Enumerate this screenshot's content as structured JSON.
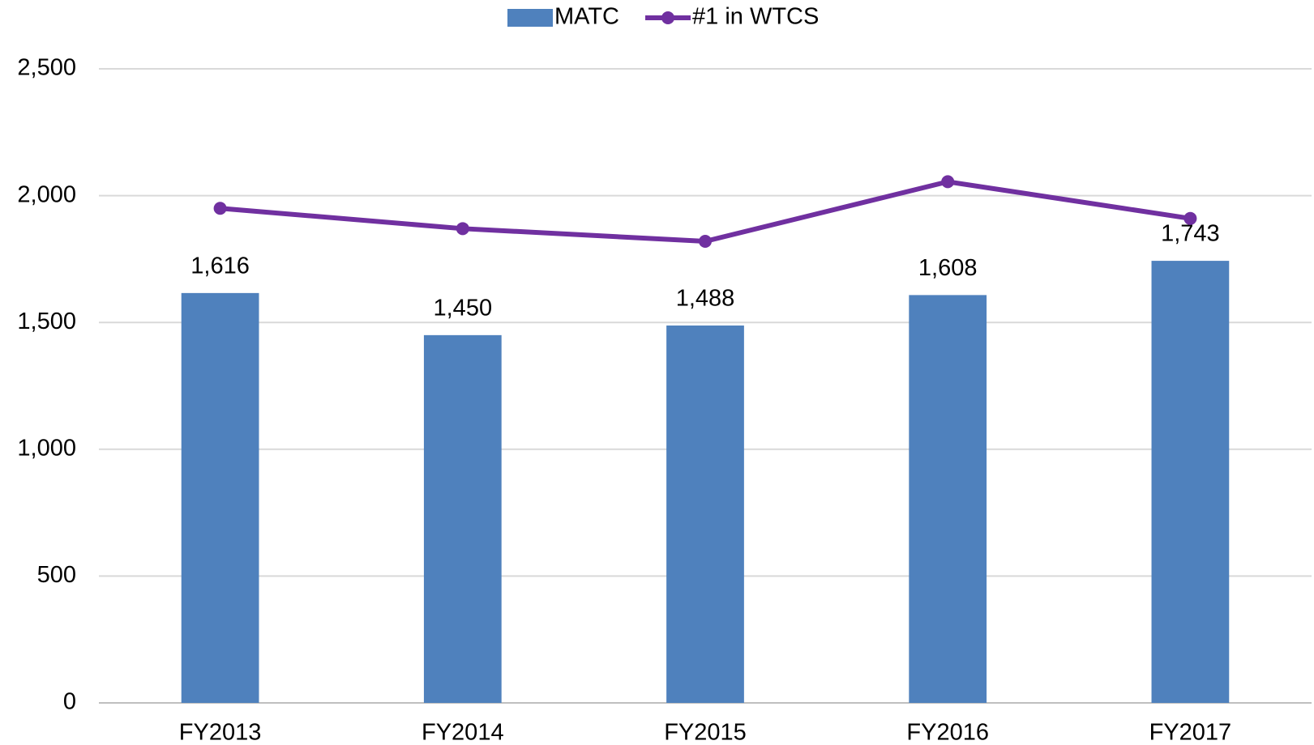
{
  "chart_data": {
    "type": "bar",
    "categories": [
      "FY2013",
      "FY2014",
      "FY2015",
      "FY2016",
      "FY2017"
    ],
    "series": [
      {
        "name": "MATC",
        "type": "bar",
        "color": "#4f81bd",
        "values": [
          1616,
          1450,
          1488,
          1608,
          1743
        ],
        "value_labels": [
          "1,616",
          "1,450",
          "1,488",
          "1,608",
          "1,743"
        ]
      },
      {
        "name": "#1 in WTCS",
        "type": "line",
        "color": "#7030a0",
        "values": [
          1950,
          1870,
          1820,
          2055,
          1910
        ]
      }
    ],
    "ylim": [
      0,
      2500
    ],
    "yticks": [
      0,
      500,
      {
        "value": 1000,
        "label": "1,000"
      },
      {
        "value": 1500,
        "label": "1,500"
      },
      {
        "value": 2000,
        "label": "2,000"
      },
      {
        "value": 2500,
        "label": "2,500"
      }
    ],
    "grid": true,
    "legend": "top"
  }
}
